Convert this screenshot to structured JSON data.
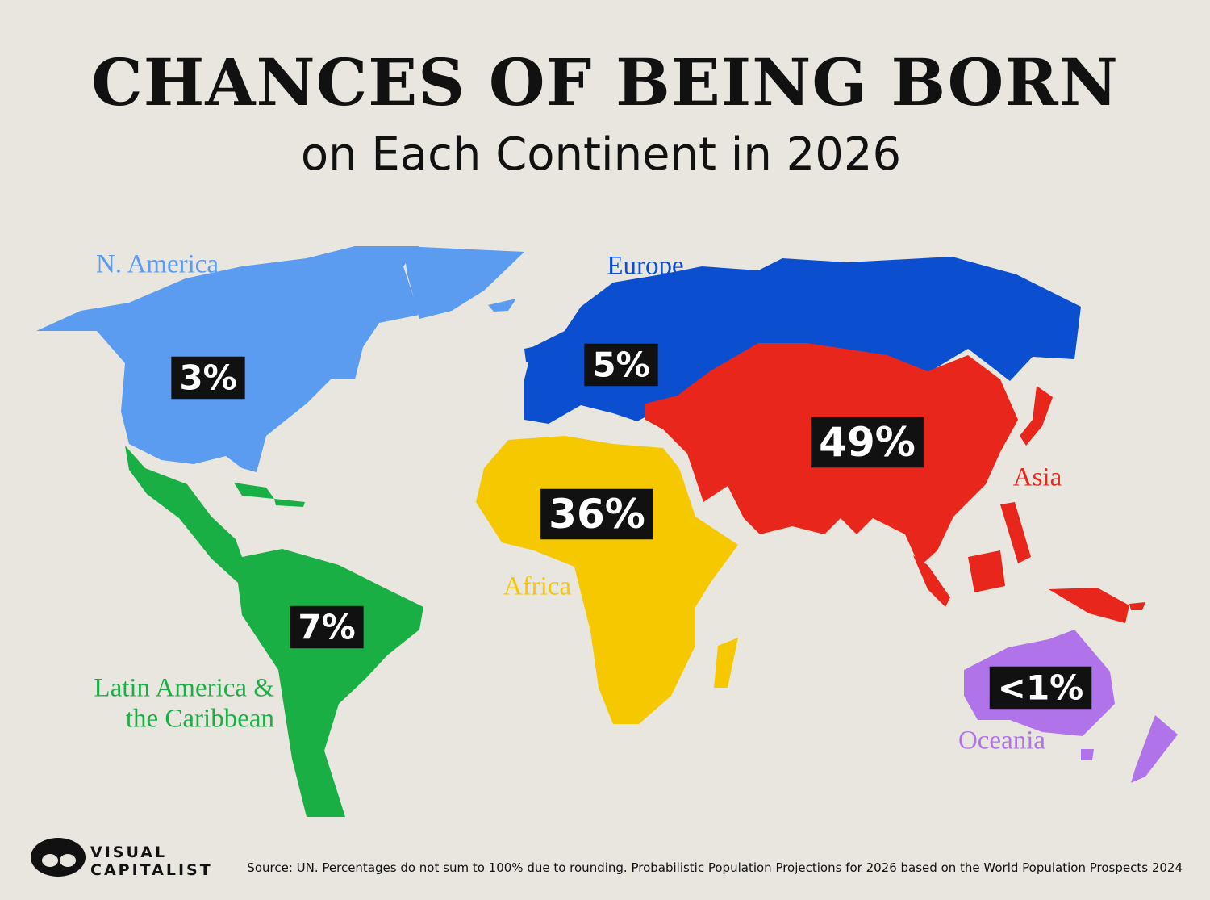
{
  "header": {
    "title": "CHANCES OF BEING BORN",
    "subtitle": "on Each Continent in 2026"
  },
  "regions": [
    {
      "name": "N. America",
      "label": "3%",
      "color": "#5b9bf0"
    },
    {
      "name": "Europe",
      "label": "5%",
      "color": "#0b4fd0"
    },
    {
      "name": "Asia",
      "label": "49%",
      "color": "#e8261c"
    },
    {
      "name": "Africa",
      "label": "36%",
      "color": "#f5c800"
    },
    {
      "name": [
        "Latin America &",
        "the Caribbean"
      ],
      "label": "7%",
      "color": "#1aaf45"
    },
    {
      "name": "Oceania",
      "label": "<1%",
      "color": "#b073ea"
    }
  ],
  "footer": {
    "logo": [
      "VISUAL",
      "CAPITALIST"
    ],
    "source": "Source: UN. Percentages do not sum to 100% due to rounding. Probabilistic Population Projections for 2026 based on the World Population Prospects 2024"
  }
}
